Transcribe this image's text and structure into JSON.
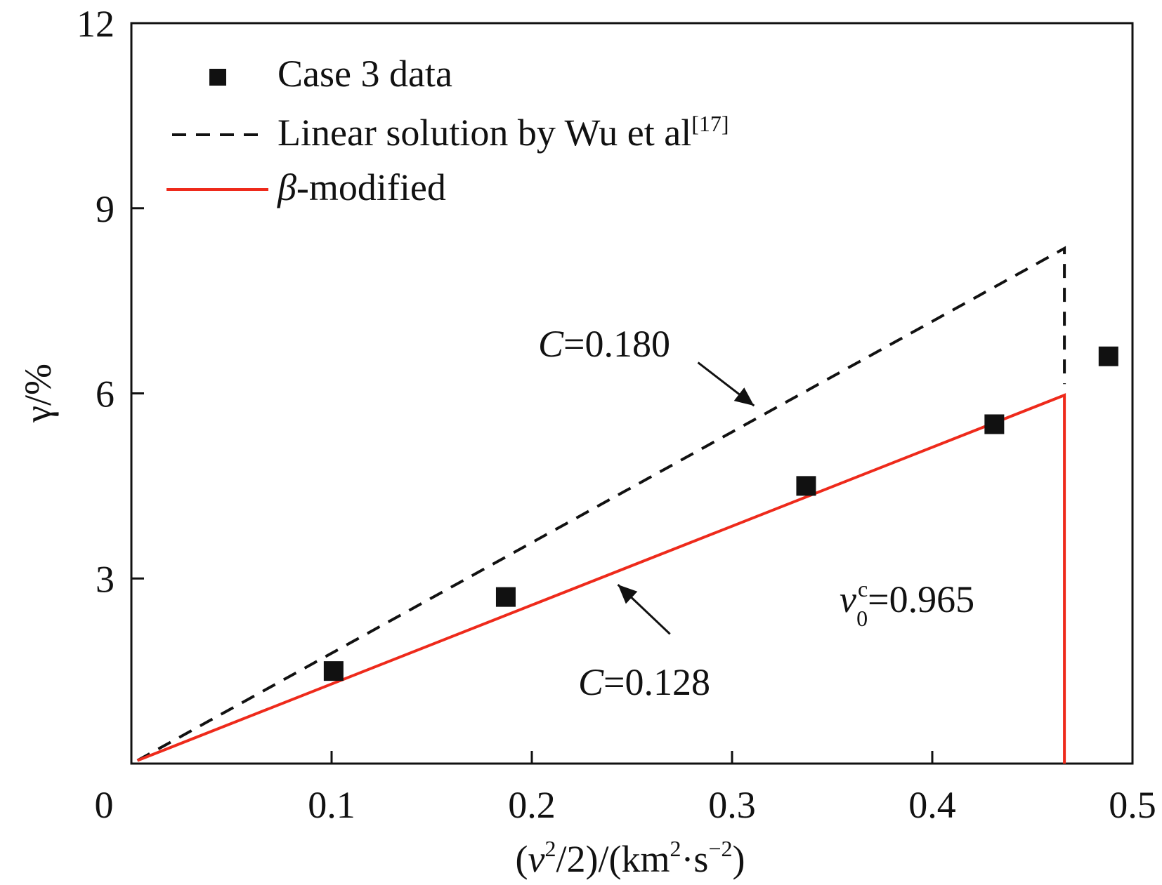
{
  "chart_data": {
    "type": "scatter",
    "xlabel": {
      "prefix": "(",
      "v": "v",
      "v_exp": "2",
      "mid": "/2)/(km",
      "km_exp": "2",
      "dot_s": "·s",
      "s_exp": "−2",
      "suffix": ")"
    },
    "ylabel": "γ/%",
    "xlim": [
      0,
      0.5
    ],
    "ylim": [
      0,
      12
    ],
    "x_ticks": [
      {
        "value": 0.1,
        "label": "0.1"
      },
      {
        "value": 0.2,
        "label": "0.2"
      },
      {
        "value": 0.3,
        "label": "0.3"
      },
      {
        "value": 0.4,
        "label": "0.4"
      },
      {
        "value": 0.5,
        "label": "0.5"
      }
    ],
    "y_ticks": [
      {
        "value": 3,
        "label": "3"
      },
      {
        "value": 6,
        "label": "6"
      },
      {
        "value": 9,
        "label": "9"
      },
      {
        "value": 12,
        "label": "12"
      }
    ],
    "origin_label": "0",
    "grid": false,
    "legend_position": "top-left",
    "series": [
      {
        "name": "Case 3 data",
        "kind": "markers",
        "marker": "square",
        "color": "#111111",
        "points": [
          {
            "x": 0.101,
            "y": 1.5
          },
          {
            "x": 0.187,
            "y": 2.7
          },
          {
            "x": 0.337,
            "y": 4.5
          },
          {
            "x": 0.431,
            "y": 5.5
          },
          {
            "x": 0.488,
            "y": 6.6
          }
        ]
      },
      {
        "name": "Linear solution by Wu et al",
        "name_sup": "[17]",
        "kind": "line",
        "dash": "dashed",
        "color": "#111111",
        "points": [
          {
            "x": 0.003,
            "y": 0.05
          },
          {
            "x": 0.466,
            "y": 8.35
          },
          {
            "x": 0.466,
            "y": 6.15
          }
        ]
      },
      {
        "name": "-modified",
        "name_prefix": "β",
        "kind": "line",
        "dash": "solid",
        "color": "#ee2a1b",
        "points": [
          {
            "x": 0.003,
            "y": 0.05
          },
          {
            "x": 0.466,
            "y": 5.97
          },
          {
            "x": 0.466,
            "y": 0
          }
        ]
      }
    ],
    "annotations": [
      {
        "id": "c-dashed",
        "italic": "C",
        "text": "=0.180",
        "arrow_from": {
          "x": 0.283,
          "y": 6.5
        },
        "arrow_to": {
          "x": 0.311,
          "y": 5.8
        }
      },
      {
        "id": "c-solid",
        "italic": "C",
        "text": "=0.128",
        "arrow_from": {
          "x": 0.269,
          "y": 2.1
        },
        "arrow_to": {
          "x": 0.243,
          "y": 2.9
        }
      },
      {
        "id": "v0c",
        "italic": "v",
        "sub": "0",
        "sup": "c",
        "text": "=0.965"
      }
    ]
  }
}
